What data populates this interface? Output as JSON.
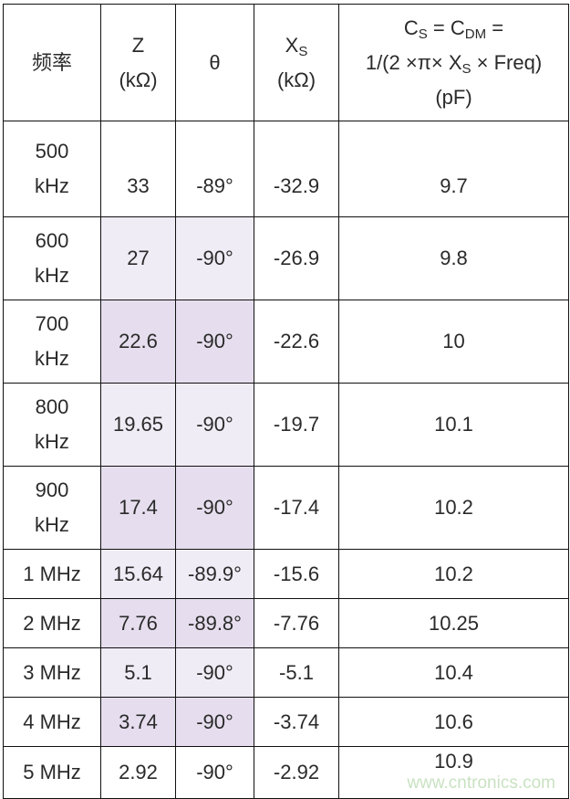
{
  "header": {
    "freq": "频率",
    "z": "Z",
    "z_unit": "(kΩ)",
    "theta": "θ",
    "xs_main": "X",
    "xs_sub": "S",
    "xs_unit": "(kΩ)",
    "cs_c1": "C",
    "cs_s": "S",
    "cs_eq1": " = C",
    "cs_dm": "DM",
    "cs_eq2": " =",
    "cs_formula_a": "1/(2 ×π× X",
    "cs_formula_s": "S",
    "cs_formula_b": " × Freq)",
    "cs_unit": "(pF)"
  },
  "rows": [
    {
      "freq": [
        "500",
        "kHz"
      ],
      "z": "33",
      "theta": "-89°",
      "xs": "-32.9",
      "cs": "9.7",
      "shade": "none"
    },
    {
      "freq": [
        "600",
        "kHz"
      ],
      "z": "27",
      "theta": "-90°",
      "xs": "-26.9",
      "cs": "9.8",
      "shade": "light"
    },
    {
      "freq": [
        "700",
        "kHz"
      ],
      "z": "22.6",
      "theta": "-90°",
      "xs": "-22.6",
      "cs": "10",
      "shade": "dark"
    },
    {
      "freq": [
        "800",
        "kHz"
      ],
      "z": "19.65",
      "theta": "-90°",
      "xs": "-19.7",
      "cs": "10.1",
      "shade": "light"
    },
    {
      "freq": [
        "900",
        "kHz"
      ],
      "z": "17.4",
      "theta": "-90°",
      "xs": "-17.4",
      "cs": "10.2",
      "shade": "dark"
    },
    {
      "freq": [
        "1 MHz"
      ],
      "z": "15.64",
      "theta": "-89.9°",
      "xs": "-15.6",
      "cs": "10.2",
      "shade": "light"
    },
    {
      "freq": [
        "2 MHz"
      ],
      "z": "7.76",
      "theta": "-89.8°",
      "xs": "-7.76",
      "cs": "10.25",
      "shade": "dark"
    },
    {
      "freq": [
        "3 MHz"
      ],
      "z": "5.1",
      "theta": "-90°",
      "xs": "-5.1",
      "cs": "10.4",
      "shade": "light"
    },
    {
      "freq": [
        "4 MHz"
      ],
      "z": "3.74",
      "theta": "-90°",
      "xs": "-3.74",
      "cs": "10.6",
      "shade": "dark"
    },
    {
      "freq": [
        "5 MHz"
      ],
      "z": "2.92",
      "theta": "-90°",
      "xs": "-2.92",
      "cs": "10.9",
      "shade": "none"
    }
  ],
  "colors": {
    "shade_light": "#f0ecf6",
    "shade_dark": "#e6deee",
    "border": "#111111"
  },
  "watermark": "www.cntronics.com"
}
